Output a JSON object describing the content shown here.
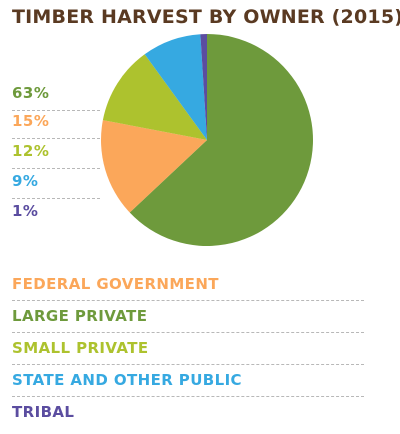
{
  "chart_data": {
    "type": "pie",
    "title": "TIMBER HARVEST BY OWNER  (2015)",
    "slices": [
      {
        "label": "LARGE PRIVATE",
        "value": 63,
        "display": "63%",
        "color": "#6e9a3c"
      },
      {
        "label": "FEDERAL GOVERNMENT",
        "value": 15,
        "display": "15%",
        "color": "#fba75a"
      },
      {
        "label": "SMALL PRIVATE",
        "value": 12,
        "display": "12%",
        "color": "#adc22e"
      },
      {
        "label": "STATE AND OTHER PUBLIC",
        "value": 9,
        "display": "9%",
        "color": "#36a9e1"
      },
      {
        "label": "TRIBAL",
        "value": 1,
        "display": "1%",
        "color": "#5b4da0"
      }
    ],
    "legend": [
      {
        "label": "FEDERAL GOVERNMENT",
        "color": "#fba75a"
      },
      {
        "label": "LARGE PRIVATE",
        "color": "#6e9a3c"
      },
      {
        "label": "SMALL PRIVATE",
        "color": "#adc22e"
      },
      {
        "label": "STATE AND OTHER PUBLIC",
        "color": "#36a9e1"
      },
      {
        "label": "TRIBAL",
        "color": "#5b4da0"
      }
    ]
  },
  "colors": {
    "title": "#5a3a22",
    "divider": "#b8b8b8"
  }
}
